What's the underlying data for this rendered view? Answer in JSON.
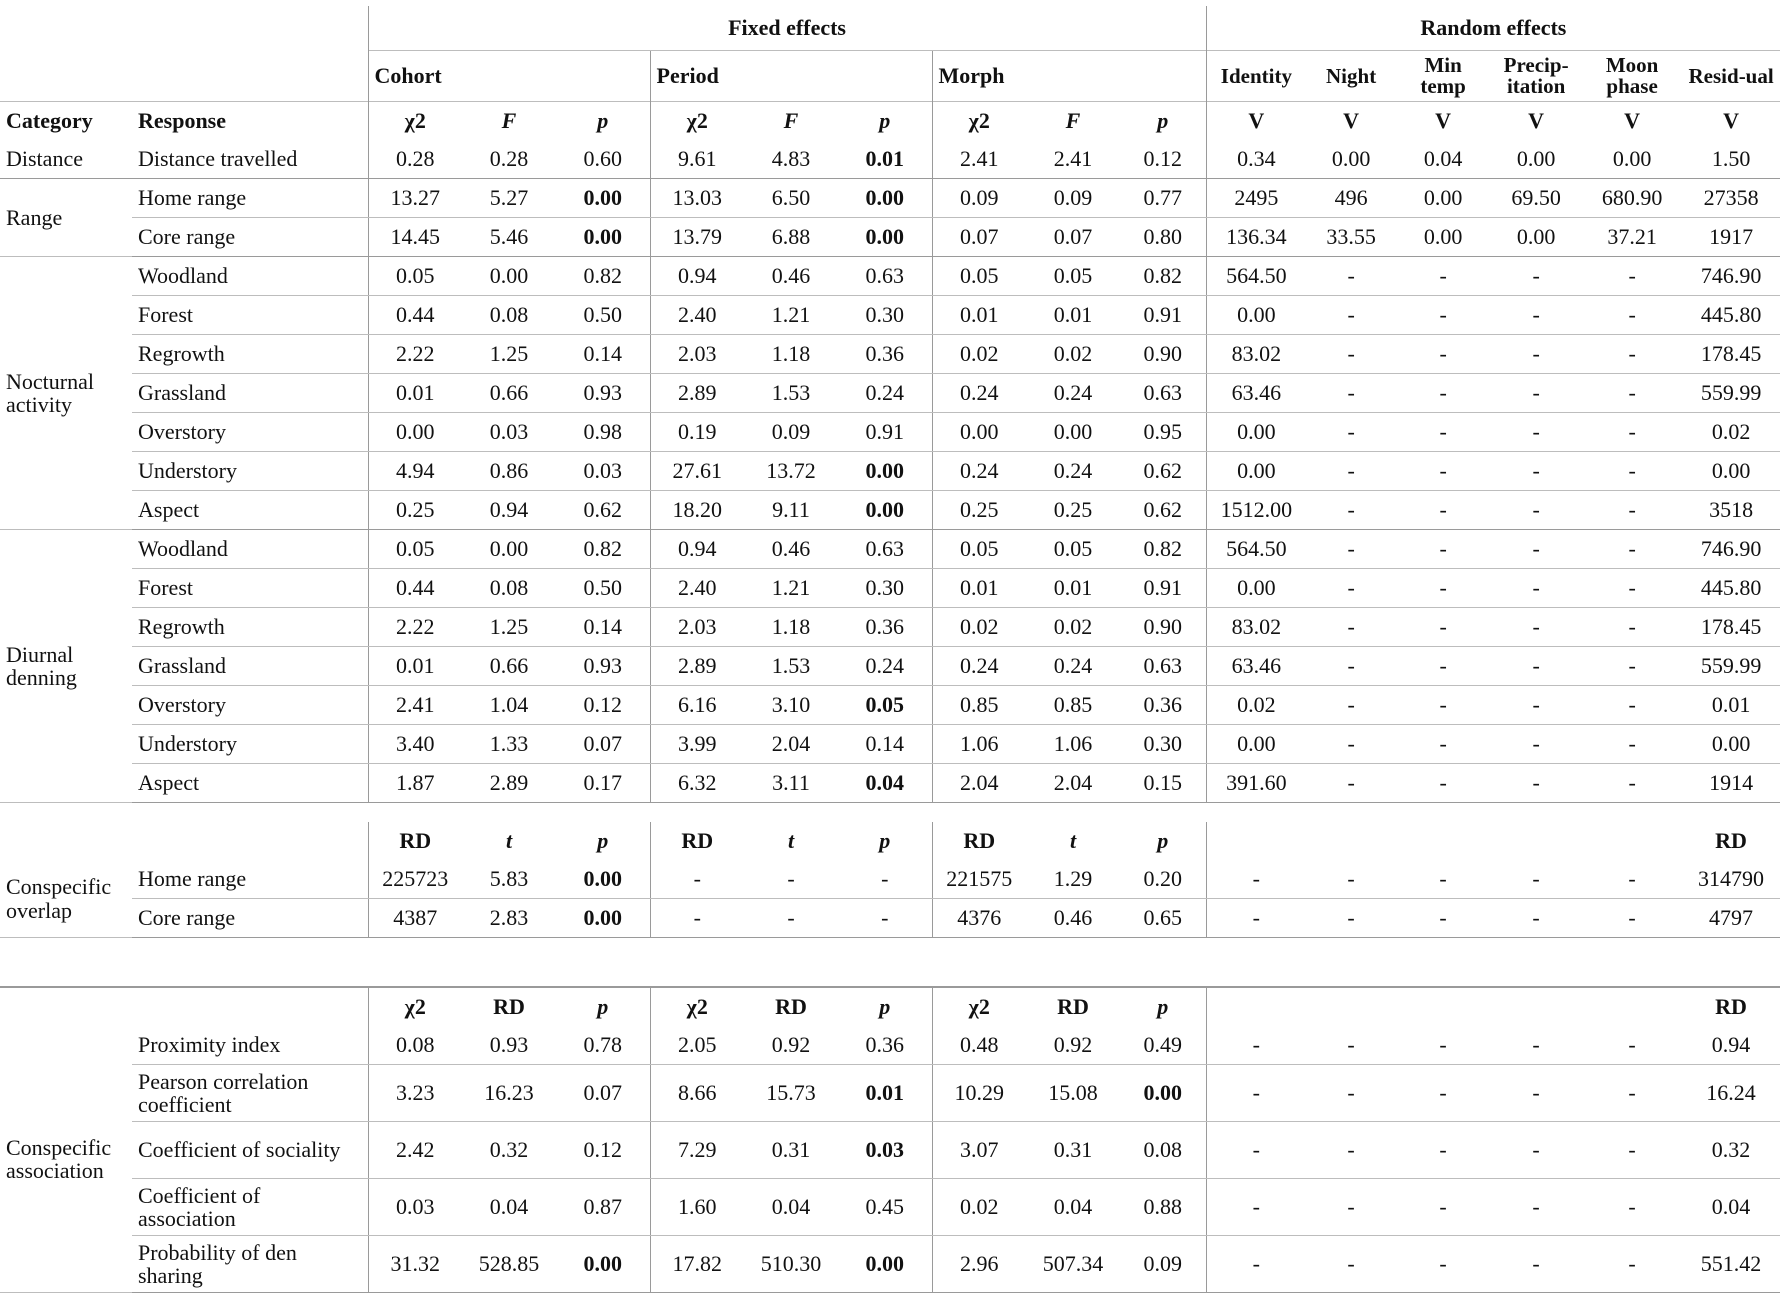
{
  "header": {
    "fixed_effects": "Fixed effects",
    "random_effects": "Random effects",
    "cohort": "Cohort",
    "period": "Period",
    "morph": "Morph",
    "identity": "Identity",
    "night": "Night",
    "min_temp": "Min temp",
    "precipitation": "Precip-itation",
    "moon_phase": "Moon phase",
    "residual": "Resid-ual",
    "category": "Category",
    "response": "Response",
    "chi2": "χ2",
    "F": "F",
    "p": "p",
    "V": "V",
    "RD": "RD",
    "t": "t"
  },
  "section1": [
    {
      "category": "Distance",
      "response": "Distance travelled",
      "shade": true,
      "values": [
        "0.28",
        "0.28",
        "0.60",
        "9.61",
        "4.83",
        "0.01",
        "2.41",
        "2.41",
        "0.12",
        "0.34",
        "0.00",
        "0.04",
        "0.00",
        "0.00",
        "1.50"
      ],
      "bold": [
        5
      ]
    },
    {
      "category": "Range",
      "response": "Home range",
      "shade": false,
      "values": [
        "13.27",
        "5.27",
        "0.00",
        "13.03",
        "6.50",
        "0.00",
        "0.09",
        "0.09",
        "0.77",
        "2495",
        "496",
        "0.00",
        "69.50",
        "680.90",
        "27358"
      ],
      "bold": [
        2,
        5
      ]
    },
    {
      "category": "",
      "response": "Core range",
      "shade": true,
      "values": [
        "14.45",
        "5.46",
        "0.00",
        "13.79",
        "6.88",
        "0.00",
        "0.07",
        "0.07",
        "0.80",
        "136.34",
        "33.55",
        "0.00",
        "0.00",
        "37.21",
        "1917"
      ],
      "bold": [
        2,
        5
      ]
    },
    {
      "category": "Nocturnal activity",
      "response": "Woodland",
      "shade": false,
      "values": [
        "0.05",
        "0.00",
        "0.82",
        "0.94",
        "0.46",
        "0.63",
        "0.05",
        "0.05",
        "0.82",
        "564.50",
        "-",
        "-",
        "-",
        "-",
        "746.90"
      ],
      "bold": []
    },
    {
      "category": "",
      "response": "Forest",
      "shade": true,
      "values": [
        "0.44",
        "0.08",
        "0.50",
        "2.40",
        "1.21",
        "0.30",
        "0.01",
        "0.01",
        "0.91",
        "0.00",
        "-",
        "-",
        "-",
        "-",
        "445.80"
      ],
      "bold": []
    },
    {
      "category": "",
      "response": "Regrowth",
      "shade": false,
      "values": [
        "2.22",
        "1.25",
        "0.14",
        "2.03",
        "1.18",
        "0.36",
        "0.02",
        "0.02",
        "0.90",
        "83.02",
        "-",
        "-",
        "-",
        "-",
        "178.45"
      ],
      "bold": []
    },
    {
      "category": "",
      "response": "Grassland",
      "shade": true,
      "values": [
        "0.01",
        "0.66",
        "0.93",
        "2.89",
        "1.53",
        "0.24",
        "0.24",
        "0.24",
        "0.63",
        "63.46",
        "-",
        "-",
        "-",
        "-",
        "559.99"
      ],
      "bold": []
    },
    {
      "category": "",
      "response": "Overstory",
      "shade": false,
      "values": [
        "0.00",
        "0.03",
        "0.98",
        "0.19",
        "0.09",
        "0.91",
        "0.00",
        "0.00",
        "0.95",
        "0.00",
        "-",
        "-",
        "-",
        "-",
        "0.02"
      ],
      "bold": []
    },
    {
      "category": "",
      "response": "Understory",
      "shade": true,
      "values": [
        "4.94",
        "0.86",
        "0.03",
        "27.61",
        "13.72",
        "0.00",
        "0.24",
        "0.24",
        "0.62",
        "0.00",
        "-",
        "-",
        "-",
        "-",
        "0.00"
      ],
      "bold": [
        5
      ]
    },
    {
      "category": "",
      "response": "Aspect",
      "shade": false,
      "values": [
        "0.25",
        "0.94",
        "0.62",
        "18.20",
        "9.11",
        "0.00",
        "0.25",
        "0.25",
        "0.62",
        "1512.00",
        "-",
        "-",
        "-",
        "-",
        "3518"
      ],
      "bold": [
        5
      ]
    },
    {
      "category": "Diurnal denning",
      "response": "Woodland",
      "shade": false,
      "values": [
        "0.05",
        "0.00",
        "0.82",
        "0.94",
        "0.46",
        "0.63",
        "0.05",
        "0.05",
        "0.82",
        "564.50",
        "-",
        "-",
        "-",
        "-",
        "746.90"
      ],
      "bold": []
    },
    {
      "category": "",
      "response": "Forest",
      "shade": true,
      "values": [
        "0.44",
        "0.08",
        "0.50",
        "2.40",
        "1.21",
        "0.30",
        "0.01",
        "0.01",
        "0.91",
        "0.00",
        "-",
        "-",
        "-",
        "-",
        "445.80"
      ],
      "bold": []
    },
    {
      "category": "",
      "response": "Regrowth",
      "shade": false,
      "values": [
        "2.22",
        "1.25",
        "0.14",
        "2.03",
        "1.18",
        "0.36",
        "0.02",
        "0.02",
        "0.90",
        "83.02",
        "-",
        "-",
        "-",
        "-",
        "178.45"
      ],
      "bold": []
    },
    {
      "category": "",
      "response": "Grassland",
      "shade": false,
      "values": [
        "0.01",
        "0.66",
        "0.93",
        "2.89",
        "1.53",
        "0.24",
        "0.24",
        "0.24",
        "0.63",
        "63.46",
        "-",
        "-",
        "-",
        "-",
        "559.99"
      ],
      "bold": []
    },
    {
      "category": "",
      "response": "Overstory",
      "shade": true,
      "values": [
        "2.41",
        "1.04",
        "0.12",
        "6.16",
        "3.10",
        "0.05",
        "0.85",
        "0.85",
        "0.36",
        "0.02",
        "-",
        "-",
        "-",
        "-",
        "0.01"
      ],
      "bold": [
        5
      ]
    },
    {
      "category": "",
      "response": "Understory",
      "shade": false,
      "values": [
        "3.40",
        "1.33",
        "0.07",
        "3.99",
        "2.04",
        "0.14",
        "1.06",
        "1.06",
        "0.30",
        "0.00",
        "-",
        "-",
        "-",
        "-",
        "0.00"
      ],
      "bold": []
    },
    {
      "category": "",
      "response": "Aspect",
      "shade": true,
      "values": [
        "1.87",
        "2.89",
        "0.17",
        "6.32",
        "3.11",
        "0.04",
        "2.04",
        "2.04",
        "0.15",
        "391.60",
        "-",
        "-",
        "-",
        "-",
        "1914"
      ],
      "bold": [
        5
      ]
    }
  ],
  "section2": {
    "category": "Conspecific overlap",
    "rows": [
      {
        "response": "Home range",
        "shade": true,
        "values": [
          "225723",
          "5.83",
          "0.00",
          "-",
          "-",
          "-",
          "221575",
          "1.29",
          "0.20",
          "-",
          "-",
          "-",
          "-",
          "-",
          "314790"
        ],
        "bold": [
          2
        ]
      },
      {
        "response": "Core range",
        "shade": false,
        "values": [
          "4387",
          "2.83",
          "0.00",
          "-",
          "-",
          "-",
          "4376",
          "0.46",
          "0.65",
          "-",
          "-",
          "-",
          "-",
          "-",
          "4797"
        ],
        "bold": [
          2
        ]
      }
    ]
  },
  "section3": {
    "category": "Conspecific association",
    "rows": [
      {
        "response": "Proximity index",
        "shade": true,
        "values": [
          "0.08",
          "0.93",
          "0.78",
          "2.05",
          "0.92",
          "0.36",
          "0.48",
          "0.92",
          "0.49",
          "-",
          "-",
          "-",
          "-",
          "-",
          "0.94"
        ],
        "bold": []
      },
      {
        "response": "Pearson correlation coefficient",
        "shade": false,
        "values": [
          "3.23",
          "16.23",
          "0.07",
          "8.66",
          "15.73",
          "0.01",
          "10.29",
          "15.08",
          "0.00",
          "-",
          "-",
          "-",
          "-",
          "-",
          "16.24"
        ],
        "bold": [
          5,
          8
        ]
      },
      {
        "response": "Coefficient of sociality",
        "shade": true,
        "values": [
          "2.42",
          "0.32",
          "0.12",
          "7.29",
          "0.31",
          "0.03",
          "3.07",
          "0.31",
          "0.08",
          "-",
          "-",
          "-",
          "-",
          "-",
          "0.32"
        ],
        "bold": [
          5
        ]
      },
      {
        "response": "Coefficient of association",
        "shade": false,
        "values": [
          "0.03",
          "0.04",
          "0.87",
          "1.60",
          "0.04",
          "0.45",
          "0.02",
          "0.04",
          "0.88",
          "-",
          "-",
          "-",
          "-",
          "-",
          "0.04"
        ],
        "bold": []
      },
      {
        "response": "Probability of den sharing",
        "shade": true,
        "values": [
          "31.32",
          "528.85",
          "0.00",
          "17.82",
          "510.30",
          "0.00",
          "2.96",
          "507.34",
          "0.09",
          "-",
          "-",
          "-",
          "-",
          "-",
          "551.42"
        ],
        "bold": [
          2,
          5
        ]
      }
    ]
  }
}
